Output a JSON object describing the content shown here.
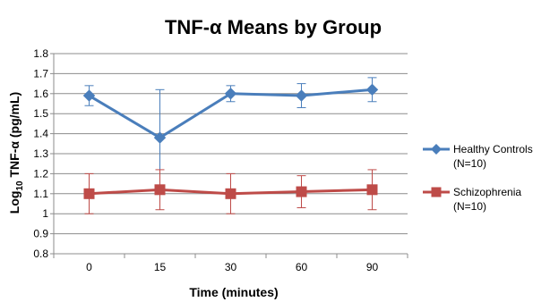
{
  "chart_data": {
    "type": "line",
    "title": "TNF-α Means by Group",
    "xlabel": "Time (minutes)",
    "ylabel_prefix": "Log",
    "ylabel_subscript": "10",
    "ylabel_suffix": " TNF-α  (pg/mL)",
    "categories": [
      "0",
      "15",
      "30",
      "60",
      "90"
    ],
    "ylim": [
      0.8,
      1.8
    ],
    "yticks": [
      "0.8",
      "0.9",
      "1",
      "1.1",
      "1.2",
      "1.3",
      "1.4",
      "1.5",
      "1.6",
      "1.7",
      "1.8"
    ],
    "grid": true,
    "legend_position": "right",
    "series": [
      {
        "name": "Healthy Controls",
        "name_line2": "(N=10)",
        "marker": "diamond",
        "color": "#4a7ebb",
        "error_color": "#4a7ebb",
        "values": [
          1.59,
          1.38,
          1.6,
          1.59,
          1.62
        ],
        "error_low": [
          1.54,
          1.13,
          1.56,
          1.53,
          1.56
        ],
        "error_high": [
          1.64,
          1.62,
          1.64,
          1.65,
          1.68
        ]
      },
      {
        "name": "Schizophrenia",
        "name_line2": "(N=10)",
        "marker": "square",
        "color": "#be4b48",
        "error_color": "#be4b48",
        "values": [
          1.1,
          1.12,
          1.1,
          1.11,
          1.12
        ],
        "error_low": [
          1.0,
          1.02,
          1.0,
          1.03,
          1.02
        ],
        "error_high": [
          1.2,
          1.22,
          1.2,
          1.19,
          1.22
        ]
      }
    ]
  }
}
